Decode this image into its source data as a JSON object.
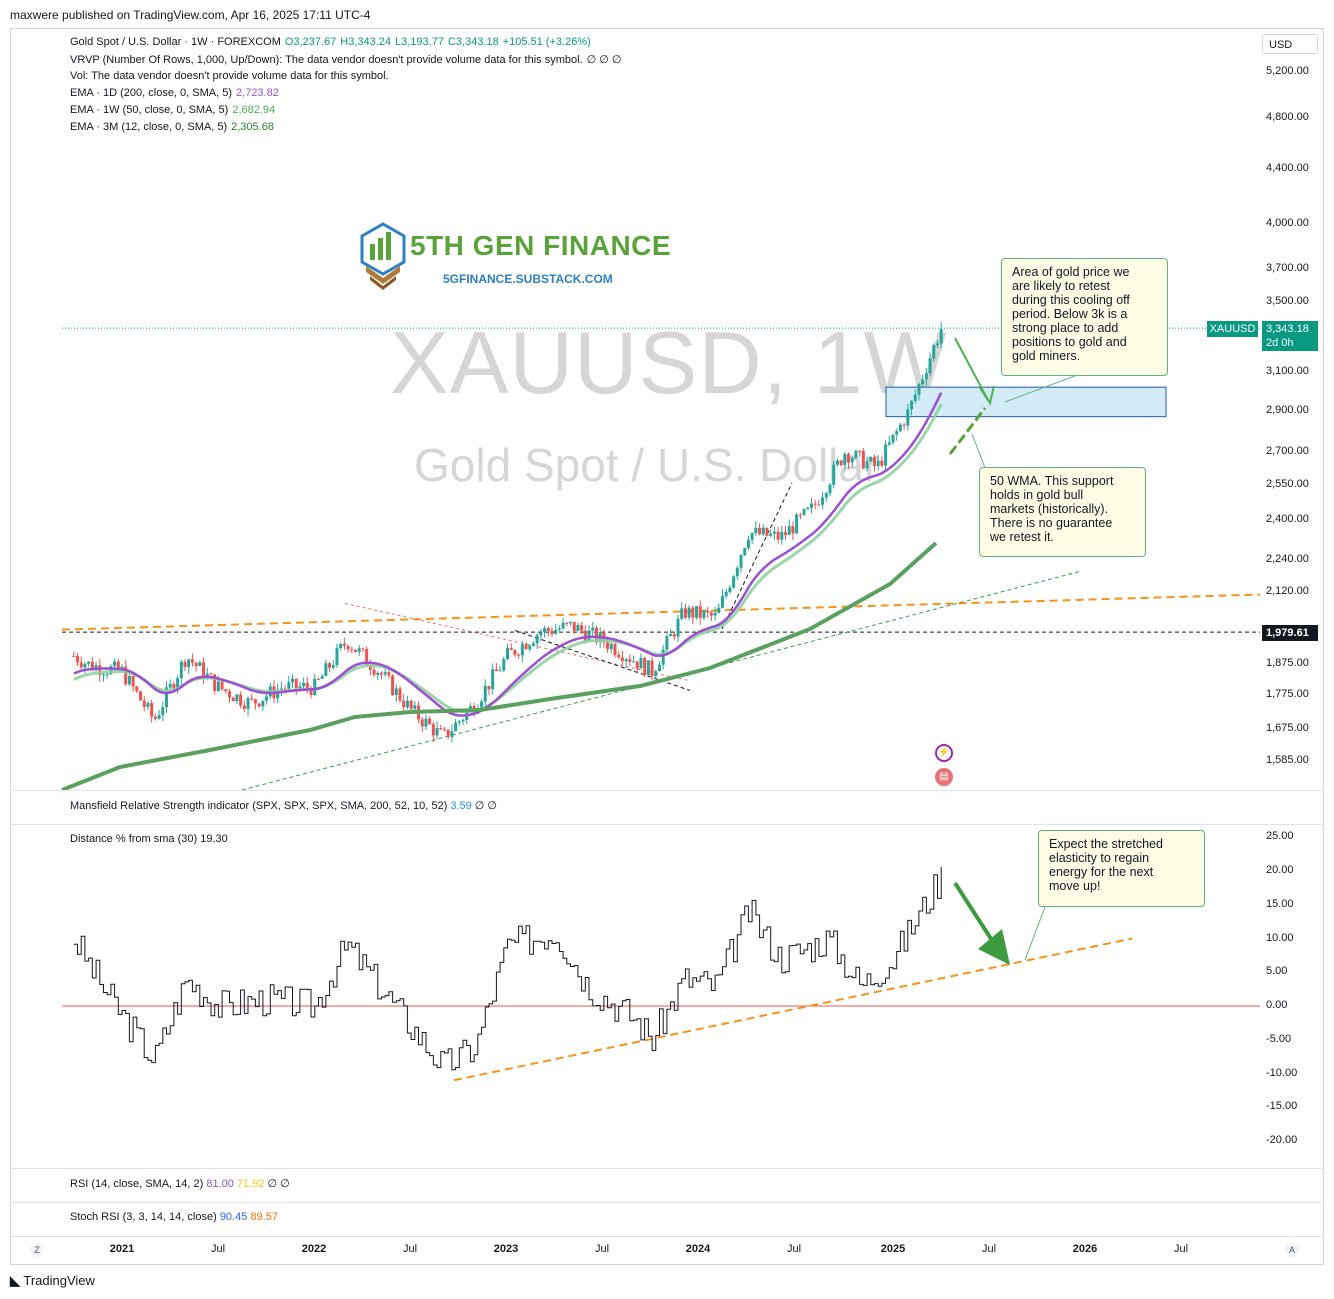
{
  "publish": "maxwere published on TradingView.com, Apr 16, 2025 17:11 UTC-4",
  "legend": {
    "main": "Gold Spot / U.S. Dollar · 1W · FOREXCOM",
    "ohlc": {
      "o": "O3,237.67",
      "h": "H3,343.24",
      "l": "L3,193.77",
      "c": "C3,343.18",
      "chg": "+105.51 (+3.26%)"
    },
    "vrvp": "VRVP (Number Of Rows, 1,000, Up/Down): The data vendor doesn't provide volume data for this symbol.",
    "vrvp_vals": "∅ ∅ ∅",
    "vol": "Vol: The data vendor doesn't provide volume data for this symbol.",
    "ema1": "EMA · 1D (200, close, 0, SMA, 5)",
    "ema1_val": "2,723.82",
    "ema2": "EMA · 1W (50, close, 0, SMA, 5)",
    "ema2_val": "2,682.94",
    "ema3": "EMA · 3M (12, close, 0, SMA, 5)",
    "ema3_val": "2,305.68"
  },
  "currency": "USD",
  "watermark": {
    "symbol": "XAUUSD, 1W",
    "description": "Gold Spot / U.S. Dollar"
  },
  "brand": {
    "name": "5TH GEN FINANCE",
    "url": "5GFINANCE.SUBSTACK.COM"
  },
  "price_axis": [
    "5,200.00",
    "4,800.00",
    "4,400.00",
    "4,000.00",
    "3,700.00",
    "3,500.00",
    "3,100.00",
    "2,900.00",
    "2,700.00",
    "2,550.00",
    "2,400.00",
    "2,240.00",
    "2,120.00",
    "1,875.00",
    "1,775.00",
    "1,675.00",
    "1,585.00"
  ],
  "price_labels": {
    "symbol": "XAUUSD",
    "last": "3,343.18",
    "countdown": "2d 0h",
    "level": "1,979.61"
  },
  "notes": {
    "retest": "Area of gold price we\nare likely to retest\nduring this cooling off\nperiod.  Below 3k is a\nstrong place to add\npositions to gold and\ngold miners.",
    "wma": "50 WMA.  This support\nholds in gold bull\nmarkets (historically).\nThere is no guarantee\nwe retest it.",
    "elastic": "Expect the stretched\nelasticity to regain\nenergy for the next\nmove up!"
  },
  "panes": {
    "mansfield": "Mansfield Relative Strength indicator (SPX, SPX, SPX, SMA, 200, 52, 10, 52)",
    "mansfield_val": "3.59",
    "mansfield_extra": "∅ ∅",
    "distance": "Distance % from sma (30)",
    "distance_val": "19.30",
    "rsi": "RSI (14, close, SMA, 14, 2)",
    "rsi_val1": "81.00",
    "rsi_val2": "71.92",
    "rsi_extra": "∅ ∅",
    "stoch": "Stoch RSI (3, 3, 14, 14, close)",
    "stoch_val1": "90.45",
    "stoch_val2": "89.57"
  },
  "distance_axis": [
    "25.00",
    "20.00",
    "15.00",
    "10.00",
    "5.00",
    "0.00",
    "-5.00",
    "-10.00",
    "-15.00",
    "-20.00"
  ],
  "time_axis": [
    "2021",
    "Jul",
    "2022",
    "Jul",
    "2023",
    "Jul",
    "2024",
    "Jul",
    "2025",
    "Jul",
    "2026",
    "Jul"
  ],
  "footer": "TradingView",
  "colors": {
    "up": "#26a69a",
    "down": "#ef5350",
    "ema1": "#9c4fd3",
    "ema2": "#8fd19e",
    "ema3": "#5aa05f",
    "orange": "#f7931a",
    "zone": "#d3ebf7"
  },
  "chart_data": [
    {
      "type": "candlestick",
      "title": "XAUUSD, 1W",
      "x_range": [
        "2020-10",
        "2026-10"
      ],
      "ylim": [
        1550,
        5300
      ],
      "log_scale": true,
      "key_values": {
        "open": 3237.67,
        "high": 3343.24,
        "low": 3193.77,
        "close": 3343.18,
        "level_line": 1979.61
      },
      "close_path": [
        {
          "t": "2020-10",
          "y": 1900
        },
        {
          "t": "2020-11",
          "y": 1870
        },
        {
          "t": "2021-01",
          "y": 1850
        },
        {
          "t": "2021-03",
          "y": 1700
        },
        {
          "t": "2021-05",
          "y": 1900
        },
        {
          "t": "2021-07",
          "y": 1800
        },
        {
          "t": "2021-09",
          "y": 1750
        },
        {
          "t": "2021-11",
          "y": 1800
        },
        {
          "t": "2022-01",
          "y": 1800
        },
        {
          "t": "2022-03",
          "y": 1950
        },
        {
          "t": "2022-05",
          "y": 1850
        },
        {
          "t": "2022-07",
          "y": 1730
        },
        {
          "t": "2022-09",
          "y": 1650
        },
        {
          "t": "2022-11",
          "y": 1750
        },
        {
          "t": "2023-01",
          "y": 1900
        },
        {
          "t": "2023-03",
          "y": 1980
        },
        {
          "t": "2023-05",
          "y": 2000
        },
        {
          "t": "2023-07",
          "y": 1950
        },
        {
          "t": "2023-10",
          "y": 1850
        },
        {
          "t": "2023-12",
          "y": 2050
        },
        {
          "t": "2024-02",
          "y": 2030
        },
        {
          "t": "2024-04",
          "y": 2350
        },
        {
          "t": "2024-06",
          "y": 2330
        },
        {
          "t": "2024-08",
          "y": 2450
        },
        {
          "t": "2024-10",
          "y": 2700
        },
        {
          "t": "2024-12",
          "y": 2630
        },
        {
          "t": "2025-02",
          "y": 2900
        },
        {
          "t": "2025-04",
          "y": 3343
        }
      ],
      "series": [
        {
          "name": "EMA · 1D (200, close, 0, SMA, 5)",
          "last": 2723.82
        },
        {
          "name": "EMA · 1W (50, close, 0, SMA, 5)",
          "last": 2682.94
        },
        {
          "name": "EMA · 3M (12, close, 0, SMA, 5)",
          "last": 2305.68
        }
      ],
      "retest_zone": [
        2870,
        3020
      ]
    },
    {
      "type": "line",
      "title": "Distance % from sma (30)",
      "ylim": [
        -22,
        27
      ],
      "last": 19.3,
      "values": [
        {
          "t": "2020-10",
          "y": 10
        },
        {
          "t": "2020-12",
          "y": 2
        },
        {
          "t": "2021-03",
          "y": -8
        },
        {
          "t": "2021-05",
          "y": 4
        },
        {
          "t": "2021-07",
          "y": 0
        },
        {
          "t": "2021-10",
          "y": 1
        },
        {
          "t": "2022-01",
          "y": 0
        },
        {
          "t": "2022-03",
          "y": 9
        },
        {
          "t": "2022-06",
          "y": 0
        },
        {
          "t": "2022-09",
          "y": -9
        },
        {
          "t": "2022-11",
          "y": -6
        },
        {
          "t": "2023-01",
          "y": 9
        },
        {
          "t": "2023-04",
          "y": 11
        },
        {
          "t": "2023-06",
          "y": 3
        },
        {
          "t": "2023-09",
          "y": -2
        },
        {
          "t": "2023-10",
          "y": -5
        },
        {
          "t": "2023-12",
          "y": 4
        },
        {
          "t": "2024-02",
          "y": 3
        },
        {
          "t": "2024-04",
          "y": 14
        },
        {
          "t": "2024-06",
          "y": 7
        },
        {
          "t": "2024-09",
          "y": 10
        },
        {
          "t": "2024-11",
          "y": 3
        },
        {
          "t": "2025-01",
          "y": 7
        },
        {
          "t": "2025-04",
          "y": 19.3
        }
      ]
    }
  ]
}
